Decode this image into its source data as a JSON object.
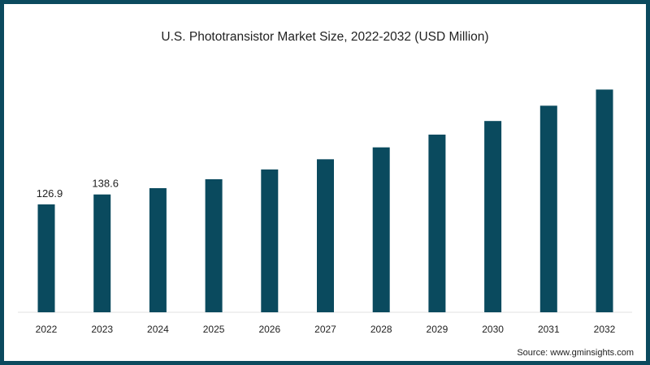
{
  "chart_data": {
    "type": "bar",
    "title": "U.S. Phototransistor Market Size, 2022-2032 (USD Million)",
    "xlabel": "",
    "ylabel": "",
    "categories": [
      "2022",
      "2023",
      "2024",
      "2025",
      "2026",
      "2027",
      "2028",
      "2029",
      "2030",
      "2031",
      "2032"
    ],
    "values": [
      126.9,
      138.6,
      146,
      156.5,
      168,
      180,
      194,
      209,
      225,
      243,
      262
    ],
    "data_labels": [
      "126.9",
      "138.6",
      "",
      "",
      "",
      "",
      "",
      "",
      "",
      "",
      ""
    ],
    "ylim": [
      0,
      270
    ],
    "grid": false,
    "legend": "none",
    "bar_color": "#0a4a5e",
    "source": "Source: www.gminsights.com"
  }
}
